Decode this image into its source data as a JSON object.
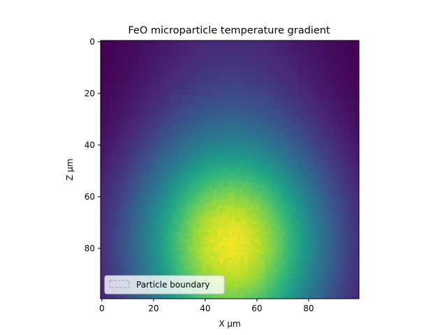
{
  "chart_data": {
    "type": "heatmap",
    "title": "FeO microparticle temperature gradient",
    "xlabel": "X μm",
    "ylabel": "Z μm",
    "xlim": [
      -0.5,
      99.5
    ],
    "ylim": [
      99.5,
      -0.5
    ],
    "xticks": [
      0,
      20,
      40,
      60,
      80
    ],
    "yticks": [
      0,
      20,
      40,
      60,
      80
    ],
    "colormap": "viridis",
    "grid": false,
    "legend": {
      "placement": "lower-left",
      "entries": [
        {
          "label": "Particle boundary",
          "style": "dashed-box",
          "edge_color": "#9a9ac8"
        }
      ]
    },
    "field": {
      "shape": [
        100,
        100
      ],
      "description_units": "normalized 0-1 colormap value",
      "hotspot_center": {
        "x": 50,
        "z": 76
      },
      "samples": [
        {
          "x": 2,
          "z": 2,
          "v": 0.0
        },
        {
          "x": 50,
          "z": 2,
          "v": 0.38
        },
        {
          "x": 97,
          "z": 2,
          "v": 0.02
        },
        {
          "x": 50,
          "z": 40,
          "v": 0.55
        },
        {
          "x": 10,
          "z": 60,
          "v": 0.45
        },
        {
          "x": 90,
          "z": 60,
          "v": 0.46
        },
        {
          "x": 50,
          "z": 76,
          "v": 0.93
        },
        {
          "x": 2,
          "z": 97,
          "v": 0.3
        },
        {
          "x": 97,
          "z": 97,
          "v": 0.28
        }
      ]
    }
  }
}
